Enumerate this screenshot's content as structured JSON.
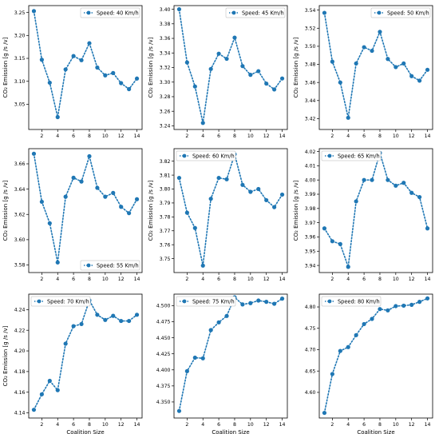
{
  "chart_data": [
    {
      "type": "line",
      "xlabel": "",
      "ylabel": "CO₂ Emission [g /s /v]",
      "x": [
        1,
        2,
        3,
        4,
        5,
        6,
        7,
        8,
        9,
        10,
        11,
        12,
        13,
        14
      ],
      "xticks": [
        2,
        4,
        6,
        8,
        10,
        12,
        14
      ],
      "xlim": [
        0.35,
        14.65
      ],
      "ylim": [
        2.995,
        3.265
      ],
      "yticks": [
        3.05,
        3.1,
        3.15,
        3.2,
        3.25
      ],
      "ytick_labels": [
        "3.05",
        "3.10",
        "3.15",
        "3.20",
        "3.25"
      ],
      "series": [
        {
          "name": "Speed: 40 Km/h",
          "values": [
            3.253,
            3.147,
            3.097,
            3.022,
            3.126,
            3.155,
            3.146,
            3.183,
            3.13,
            3.113,
            3.118,
            3.096,
            3.083,
            3.106
          ]
        }
      ],
      "legend": "top-right",
      "grid": false
    },
    {
      "type": "line",
      "xlabel": "",
      "ylabel": "CO₂ Emission [g /s /v]",
      "x": [
        1,
        2,
        3,
        4,
        5,
        6,
        7,
        8,
        9,
        10,
        11,
        12,
        13,
        14
      ],
      "xticks": [
        2,
        4,
        6,
        8,
        10,
        12,
        14
      ],
      "xlim": [
        0.35,
        14.65
      ],
      "ylim": [
        3.235,
        3.405
      ],
      "yticks": [
        3.24,
        3.26,
        3.28,
        3.3,
        3.32,
        3.34,
        3.36,
        3.38,
        3.4
      ],
      "ytick_labels": [
        "3.24",
        "3.26",
        "3.28",
        "3.30",
        "3.32",
        "3.34",
        "3.36",
        "3.38",
        "3.40"
      ],
      "series": [
        {
          "name": "Speed: 45 Km/h",
          "values": [
            3.4,
            3.327,
            3.294,
            3.244,
            3.318,
            3.339,
            3.332,
            3.361,
            3.322,
            3.31,
            3.315,
            3.298,
            3.29,
            3.305
          ]
        }
      ],
      "legend": "top-right",
      "grid": false
    },
    {
      "type": "line",
      "xlabel": "",
      "ylabel": "CO₂ Emission [g /s /v]",
      "x": [
        1,
        2,
        3,
        4,
        5,
        6,
        7,
        8,
        9,
        10,
        11,
        12,
        13,
        14
      ],
      "xticks": [
        2,
        4,
        6,
        8,
        10,
        12,
        14
      ],
      "xlim": [
        0.35,
        14.65
      ],
      "ylim": [
        3.408,
        3.545
      ],
      "yticks": [
        3.42,
        3.44,
        3.46,
        3.48,
        3.5,
        3.52,
        3.54
      ],
      "ytick_labels": [
        "3.42",
        "3.44",
        "3.46",
        "3.48",
        "3.50",
        "3.52",
        "3.54"
      ],
      "series": [
        {
          "name": "Speed: 50 Km/h",
          "values": [
            3.537,
            3.483,
            3.46,
            3.421,
            3.481,
            3.499,
            3.495,
            3.516,
            3.486,
            3.477,
            3.481,
            3.467,
            3.462,
            3.474
          ]
        }
      ],
      "legend": "top-right",
      "grid": false
    },
    {
      "type": "line",
      "xlabel": "",
      "ylabel": "CO₂ Emission [g /s /v]",
      "x": [
        1,
        2,
        3,
        4,
        5,
        6,
        7,
        8,
        9,
        10,
        11,
        12,
        13,
        14
      ],
      "xticks": [
        2,
        4,
        6,
        8,
        10,
        12,
        14
      ],
      "xlim": [
        0.35,
        14.65
      ],
      "ylim": [
        3.574,
        3.672
      ],
      "yticks": [
        3.58,
        3.6,
        3.62,
        3.64,
        3.66
      ],
      "ytick_labels": [
        "3.58",
        "3.60",
        "3.62",
        "3.64",
        "3.66"
      ],
      "series": [
        {
          "name": "Speed: 55 Km/h",
          "values": [
            3.668,
            3.63,
            3.613,
            3.582,
            3.634,
            3.649,
            3.646,
            3.666,
            3.641,
            3.634,
            3.637,
            3.626,
            3.621,
            3.632
          ]
        }
      ],
      "legend": "bottom-right",
      "grid": false
    },
    {
      "type": "line",
      "xlabel": "",
      "ylabel": "CO₂ Emission [g /s /v]",
      "x": [
        1,
        2,
        3,
        4,
        5,
        6,
        7,
        8,
        9,
        10,
        11,
        12,
        13,
        14
      ],
      "xticks": [
        2,
        4,
        6,
        8,
        10,
        12,
        14
      ],
      "xlim": [
        0.35,
        14.65
      ],
      "ylim": [
        3.74,
        3.829
      ],
      "yticks": [
        3.75,
        3.76,
        3.77,
        3.78,
        3.79,
        3.8,
        3.81,
        3.82
      ],
      "ytick_labels": [
        "3.75",
        "3.76",
        "3.77",
        "3.78",
        "3.79",
        "3.80",
        "3.81",
        "3.82"
      ],
      "series": [
        {
          "name": "Speed: 60 Km/h",
          "values": [
            3.808,
            3.783,
            3.772,
            3.745,
            3.793,
            3.808,
            3.807,
            3.825,
            3.803,
            3.798,
            3.8,
            3.792,
            3.787,
            3.796
          ]
        }
      ],
      "legend": "top-left",
      "grid": false
    },
    {
      "type": "line",
      "xlabel": "",
      "ylabel": "CO₂ Emission [g /s /v]",
      "x": [
        1,
        2,
        3,
        4,
        5,
        6,
        7,
        8,
        9,
        10,
        11,
        12,
        13,
        14
      ],
      "xticks": [
        2,
        4,
        6,
        8,
        10,
        12,
        14
      ],
      "xlim": [
        0.35,
        14.65
      ],
      "ylim": [
        3.935,
        4.022
      ],
      "yticks": [
        3.94,
        3.95,
        3.96,
        3.97,
        3.98,
        3.99,
        4.0,
        4.01,
        4.02
      ],
      "ytick_labels": [
        "3.94",
        "3.95",
        "3.96",
        "3.97",
        "3.98",
        "3.99",
        "4.00",
        "4.01",
        "4.02"
      ],
      "series": [
        {
          "name": "Speed: 65 Km/h",
          "values": [
            3.966,
            3.957,
            3.955,
            3.939,
            3.985,
            4.0,
            4.0,
            4.019,
            4.0,
            3.996,
            3.998,
            3.991,
            3.988,
            3.966
          ]
        }
      ],
      "legend": "top-left",
      "grid": false
    },
    {
      "type": "line",
      "xlabel": "Coalition Size",
      "ylabel": "CO₂ Emission [g /s /v]",
      "x": [
        1,
        2,
        3,
        4,
        5,
        6,
        7,
        8,
        9,
        10,
        11,
        12,
        13,
        14
      ],
      "xticks": [
        2,
        4,
        6,
        8,
        10,
        12,
        14
      ],
      "xlim": [
        0.35,
        14.65
      ],
      "ylim": [
        4.135,
        4.255
      ],
      "yticks": [
        4.14,
        4.16,
        4.18,
        4.2,
        4.22,
        4.24
      ],
      "ytick_labels": [
        "4.14",
        "4.16",
        "4.18",
        "4.20",
        "4.22",
        "4.24"
      ],
      "series": [
        {
          "name": "Speed: 70 Km/h",
          "values": [
            4.143,
            4.158,
            4.171,
            4.162,
            4.207,
            4.224,
            4.226,
            4.249,
            4.235,
            4.23,
            4.234,
            4.229,
            4.229,
            4.235
          ]
        }
      ],
      "legend": "top-left",
      "grid": false
    },
    {
      "type": "line",
      "xlabel": "Coalition Size",
      "ylabel": "",
      "x": [
        1,
        2,
        3,
        4,
        5,
        6,
        7,
        8,
        9,
        10,
        11,
        12,
        13,
        14
      ],
      "xticks": [
        2,
        4,
        6,
        8,
        10,
        12,
        14
      ],
      "xlim": [
        0.35,
        14.65
      ],
      "ylim": [
        4.325,
        4.518
      ],
      "yticks": [
        4.35,
        4.375,
        4.4,
        4.425,
        4.45,
        4.475,
        4.5
      ],
      "ytick_labels": [
        "4.350",
        "4.375",
        "4.400",
        "4.425",
        "4.450",
        "4.475",
        "4.500"
      ],
      "series": [
        {
          "name": "Speed: 75 Km/h",
          "values": [
            4.336,
            4.398,
            4.419,
            4.418,
            4.462,
            4.474,
            4.484,
            4.513,
            4.502,
            4.504,
            4.508,
            4.506,
            4.503,
            4.511
          ]
        }
      ],
      "legend": "top-left",
      "grid": false
    },
    {
      "type": "line",
      "xlabel": "Coalition Size",
      "ylabel": "",
      "x": [
        1,
        2,
        3,
        4,
        5,
        6,
        7,
        8,
        9,
        10,
        11,
        12,
        13,
        14
      ],
      "xticks": [
        2,
        4,
        6,
        8,
        10,
        12,
        14
      ],
      "xlim": [
        0.35,
        14.65
      ],
      "ylim": [
        4.54,
        4.83
      ],
      "yticks": [
        4.6,
        4.65,
        4.7,
        4.75,
        4.8
      ],
      "ytick_labels": [
        "4.60",
        "4.65",
        "4.70",
        "4.75",
        "4.80"
      ],
      "series": [
        {
          "name": "Speed: 80 Km/h",
          "values": [
            4.552,
            4.643,
            4.697,
            4.706,
            4.734,
            4.76,
            4.772,
            4.795,
            4.792,
            4.802,
            4.803,
            4.805,
            4.812,
            4.82
          ]
        }
      ],
      "legend": "top-left",
      "grid": false
    }
  ],
  "colors": {
    "series": "#1f77b4",
    "axis": "#000000",
    "legend_border": "#cccccc"
  }
}
